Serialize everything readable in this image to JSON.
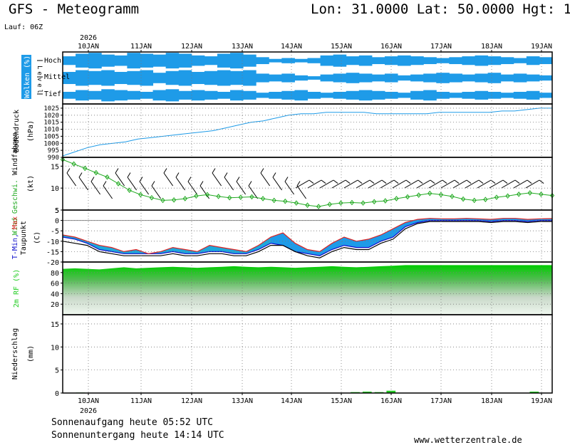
{
  "header": {
    "title": "GFS - Meteogramm",
    "location": "Lon: 31.0000 Lat: 50.0000 Hgt: 1",
    "run": "Lauf: 06Z"
  },
  "footer": {
    "sunrise": "Sonnenaufgang heute 05:52 UTC",
    "sunset": "Sonnenuntergang heute 14:14 UTC",
    "site": "www.wetterzentrale.de"
  },
  "colors": {
    "cloud": "#1e9be8",
    "pressure": "#1e9be8",
    "wind": "#22aa22",
    "tmin": "#1010cc",
    "tmax": "#dd2222",
    "dew": "#000000",
    "humidity": "#20cc20",
    "precip": "#22cc22"
  },
  "chart_data": {
    "type": "line",
    "x_axis": {
      "year_label": "2026",
      "days": [
        "10JAN",
        "11JAN",
        "12JAN",
        "13JAN",
        "14JAN",
        "15JAN",
        "16JAN",
        "17JAN",
        "18JAN",
        "19JAN"
      ]
    },
    "panels": [
      {
        "id": "clouds",
        "type": "heatmap",
        "ylabel": "Wolken (%)",
        "level_label": "Level",
        "rows": [
          "Hoch",
          "Mittel",
          "Tief"
        ],
        "coverage": {
          "Hoch": [
            0.5,
            0.8,
            0.9,
            0.7,
            0.6,
            0.9,
            0.8,
            0.7,
            0.9,
            0.8,
            0.6,
            0.5,
            0.8,
            0.9,
            0.7,
            0.4,
            0.2,
            0.3,
            0.2,
            0.3,
            0.6,
            0.7,
            0.5,
            0.6,
            0.4,
            0.5,
            0.6,
            0.5,
            0.4,
            0.3,
            0.4,
            0.5,
            0.6,
            0.5,
            0.4,
            0.3,
            0.5,
            0.4
          ],
          "Mittel": [
            0.7,
            0.9,
            0.8,
            0.9,
            0.7,
            0.8,
            0.9,
            0.6,
            0.8,
            0.9,
            0.7,
            0.8,
            0.9,
            0.8,
            0.9,
            0.5,
            0.4,
            0.5,
            0.3,
            0.2,
            0.4,
            0.5,
            0.6,
            0.5,
            0.4,
            0.5,
            0.3,
            0.4,
            0.5,
            0.6,
            0.5,
            0.4,
            0.5,
            0.6,
            0.4,
            0.5,
            0.4,
            0.3
          ],
          "Tief": [
            0.4,
            0.6,
            0.5,
            0.7,
            0.6,
            0.5,
            0.4,
            0.6,
            0.7,
            0.5,
            0.6,
            0.5,
            0.4,
            0.6,
            0.5,
            0.3,
            0.4,
            0.5,
            0.6,
            0.4,
            0.3,
            0.4,
            0.5,
            0.6,
            0.5,
            0.4,
            0.3,
            0.5,
            0.6,
            0.4,
            0.3,
            0.4,
            0.5,
            0.4,
            0.3,
            0.4,
            0.5,
            0.3
          ]
        }
      },
      {
        "id": "pressure",
        "ylabel": "Bodendruck",
        "unit": "(hPa)",
        "yticks": [
          990,
          995,
          1000,
          1005,
          1010,
          1015,
          1020,
          1025
        ],
        "ylim": [
          990,
          1028
        ],
        "series": [
          {
            "values": [
              991,
              994,
              997,
              999,
              1000,
              1001,
              1003,
              1004,
              1005,
              1006,
              1007,
              1008,
              1009,
              1011,
              1013,
              1015,
              1016,
              1018,
              1020,
              1021,
              1021,
              1022,
              1022,
              1022,
              1022,
              1021,
              1021,
              1021,
              1021,
              1021,
              1022,
              1022,
              1022,
              1022,
              1022,
              1023,
              1023,
              1024,
              1025,
              1025
            ]
          }
        ]
      },
      {
        "id": "wind",
        "ylabel": "Wind Geschwi.",
        "ylabel2": "Windfahnen",
        "unit": "(kt)",
        "yticks": [
          5,
          10,
          15
        ],
        "ylim": [
          5,
          17
        ],
        "series": [
          {
            "values": [
              16.5,
              15.5,
              14.5,
              13.5,
              12.5,
              11,
              9.5,
              8.5,
              7.8,
              7.2,
              7.3,
              7.6,
              8.2,
              8.5,
              8.1,
              7.8,
              7.9,
              8,
              7.6,
              7.2,
              7,
              6.6,
              6.1,
              5.8,
              6.3,
              6.6,
              6.7,
              6.6,
              6.9,
              7.1,
              7.6,
              8,
              8.4,
              8.8,
              8.5,
              8.1,
              7.5,
              7.2,
              7.4,
              7.9,
              8.2,
              8.6,
              8.9,
              8.6,
              8.3
            ]
          }
        ]
      },
      {
        "id": "temperature",
        "ylabel": "T-Min, Max",
        "ylabel2": "Taupunkt",
        "unit": "(C)",
        "yticks": [
          -20,
          -15,
          -10,
          -5,
          0,
          5
        ],
        "ylim": [
          -20,
          5
        ],
        "series": [
          {
            "name": "Max",
            "values": [
              -7,
              -8,
              -10,
              -12,
              -13,
              -15,
              -14,
              -16,
              -15,
              -13,
              -14,
              -15,
              -12,
              -13,
              -14,
              -15,
              -12,
              -8,
              -6,
              -11,
              -14,
              -15,
              -11,
              -8,
              -10,
              -9,
              -7,
              -4,
              -1,
              0.5,
              1,
              0.8,
              0.8,
              1,
              0.8,
              0.5,
              1,
              1,
              0.5,
              0.8,
              0.9
            ]
          },
          {
            "name": "Min",
            "values": [
              -8,
              -9,
              -11,
              -14,
              -15,
              -16,
              -16,
              -16,
              -16,
              -15,
              -16,
              -16,
              -15,
              -15,
              -16,
              -16,
              -14,
              -11,
              -12,
              -15,
              -16,
              -17,
              -14,
              -12,
              -13,
              -13,
              -10,
              -8,
              -3,
              -1,
              0,
              0,
              0,
              0,
              0,
              -0.5,
              0,
              0,
              -0.5,
              0,
              0
            ]
          },
          {
            "name": "Taupunkt",
            "values": [
              -10,
              -11,
              -12,
              -15,
              -16,
              -17,
              -17,
              -17,
              -17,
              -16,
              -17,
              -17,
              -16,
              -16,
              -17,
              -17,
              -15,
              -12,
              -12,
              -15,
              -17,
              -18,
              -15,
              -13,
              -14,
              -14,
              -11,
              -9,
              -4,
              -1.5,
              -0.5,
              -0.5,
              -0.5,
              -0.5,
              -0.5,
              -1,
              -0.5,
              -0.5,
              -1,
              -0.5,
              -0.5
            ]
          }
        ]
      },
      {
        "id": "humidity",
        "ylabel": "2m RF (%)",
        "yticks": [
          20,
          40,
          60,
          80
        ],
        "ylim": [
          0,
          100
        ],
        "series": [
          {
            "values": [
              87,
              88,
              87,
              86,
              88,
              90,
              88,
              89,
              90,
              91,
              90,
              89,
              90,
              91,
              92,
              91,
              90,
              91,
              90,
              89,
              90,
              91,
              92,
              91,
              90,
              91,
              92,
              93,
              94,
              94,
              94,
              94,
              94,
              94,
              94,
              94,
              94,
              94,
              94,
              94,
              94
            ]
          }
        ]
      },
      {
        "id": "precip",
        "type": "bar",
        "ylabel": "Niederschlag",
        "unit": "(mm)",
        "yticks": [
          0,
          5,
          10,
          15
        ],
        "ylim": [
          0,
          17
        ],
        "series": [
          {
            "values": [
              0,
              0.1,
              0,
              0,
              0,
              0,
              0,
              0,
              0,
              0,
              0,
              0,
              0,
              0,
              0,
              0,
              0,
              0,
              0,
              0,
              0,
              0,
              0,
              0,
              0.2,
              0.3,
              0.2,
              0.5,
              0,
              0,
              0,
              0,
              0,
              0,
              0,
              0,
              0,
              0,
              0,
              0.3,
              0
            ]
          }
        ]
      }
    ]
  }
}
